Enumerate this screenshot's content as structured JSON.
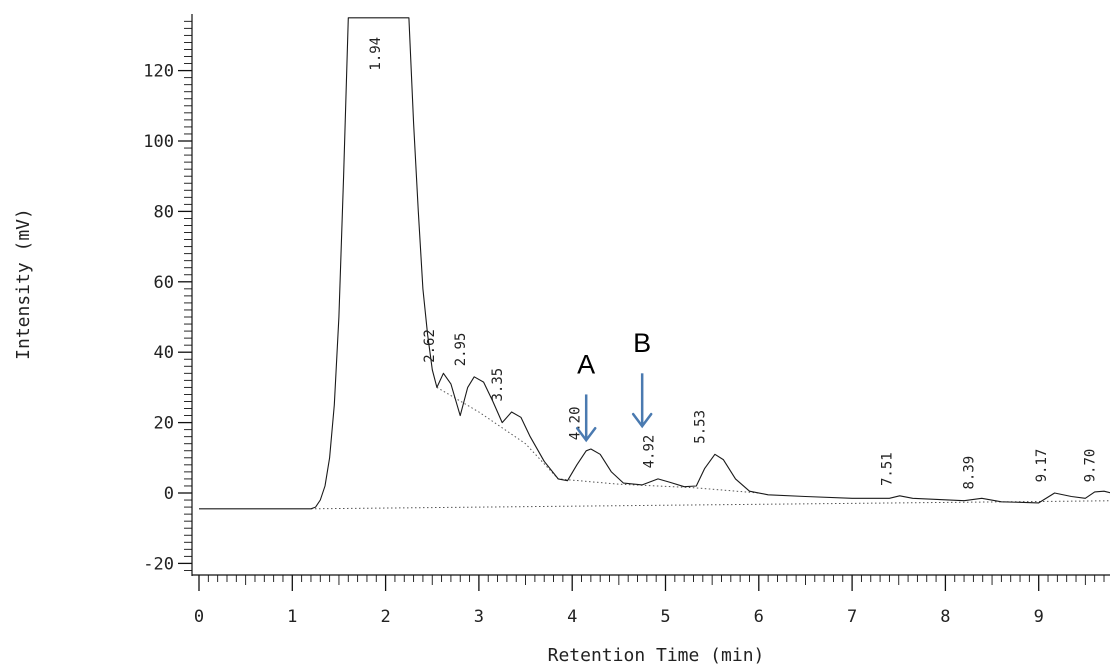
{
  "chart_data": {
    "type": "line",
    "title": "",
    "xlabel": "Retention Time (min)",
    "ylabel": "Intensity (mV)",
    "xlim": [
      0,
      9.85
    ],
    "ylim": [
      -24,
      135
    ],
    "x_ticks": [
      "0",
      "1",
      "2",
      "3",
      "4",
      "5",
      "6",
      "7",
      "8",
      "9"
    ],
    "y_ticks": [
      "-20",
      "0",
      "20",
      "40",
      "60",
      "80",
      "100",
      "120"
    ],
    "grid": false,
    "series": [
      {
        "points": [
          [
            0,
            -4.5
          ],
          [
            1.2,
            -4.5
          ],
          [
            1.25,
            -4.0
          ],
          [
            1.3,
            -2.0
          ],
          [
            1.35,
            2.0
          ],
          [
            1.4,
            10.0
          ],
          [
            1.45,
            25.0
          ],
          [
            1.5,
            50.0
          ],
          [
            1.55,
            90.0
          ],
          [
            1.6,
            135.0
          ],
          [
            2.25,
            135.0
          ],
          [
            2.3,
            105.0
          ],
          [
            2.35,
            80.0
          ],
          [
            2.4,
            58.0
          ],
          [
            2.45,
            45.0
          ],
          [
            2.5,
            35.0
          ],
          [
            2.55,
            30.0
          ],
          [
            2.62,
            34.0
          ],
          [
            2.7,
            31.0
          ],
          [
            2.8,
            22.0
          ],
          [
            2.88,
            30.0
          ],
          [
            2.95,
            33.0
          ],
          [
            3.05,
            31.5
          ],
          [
            3.15,
            26.0
          ],
          [
            3.25,
            20.0
          ],
          [
            3.35,
            23.0
          ],
          [
            3.45,
            21.5
          ],
          [
            3.55,
            16.0
          ],
          [
            3.7,
            9.0
          ],
          [
            3.85,
            4.0
          ],
          [
            3.95,
            3.5
          ],
          [
            4.05,
            8.0
          ],
          [
            4.15,
            12.0
          ],
          [
            4.2,
            12.5
          ],
          [
            4.3,
            11.0
          ],
          [
            4.42,
            6.0
          ],
          [
            4.55,
            2.8
          ],
          [
            4.75,
            2.3
          ],
          [
            4.92,
            4.0
          ],
          [
            5.05,
            3.0
          ],
          [
            5.2,
            1.8
          ],
          [
            5.33,
            2.0
          ],
          [
            5.42,
            7.0
          ],
          [
            5.53,
            11.0
          ],
          [
            5.62,
            9.5
          ],
          [
            5.75,
            4.0
          ],
          [
            5.9,
            0.5
          ],
          [
            6.1,
            -0.5
          ],
          [
            6.5,
            -1.0
          ],
          [
            7.0,
            -1.5
          ],
          [
            7.4,
            -1.5
          ],
          [
            7.51,
            -0.8
          ],
          [
            7.65,
            -1.5
          ],
          [
            8.2,
            -2.2
          ],
          [
            8.39,
            -1.5
          ],
          [
            8.6,
            -2.5
          ],
          [
            9.0,
            -2.8
          ],
          [
            9.17,
            0.0
          ],
          [
            9.35,
            -1.0
          ],
          [
            9.5,
            -1.5
          ],
          [
            9.6,
            0.3
          ],
          [
            9.7,
            0.5
          ],
          [
            9.85,
            -0.5
          ]
        ]
      }
    ],
    "baseline": [
      [
        1.2,
        -4.5
      ],
      [
        9.85,
        -2.2
      ]
    ],
    "envelope": [
      [
        2.55,
        30.0
      ],
      [
        3.0,
        23.0
      ],
      [
        3.5,
        14.0
      ],
      [
        3.85,
        4.0
      ],
      [
        4.5,
        2.5
      ],
      [
        5.3,
        1.5
      ],
      [
        6.0,
        0.0
      ]
    ],
    "peak_labels": [
      {
        "text": "1.94",
        "x": 1.94,
        "y": 120
      },
      {
        "text": "2.62",
        "x": 2.52,
        "y": 37
      },
      {
        "text": "2.95",
        "x": 2.85,
        "y": 36
      },
      {
        "text": "3.35",
        "x": 3.25,
        "y": 26
      },
      {
        "text": "4.20",
        "x": 4.08,
        "y": 15
      },
      {
        "text": "4.92",
        "x": 4.87,
        "y": 7
      },
      {
        "text": "5.53",
        "x": 5.42,
        "y": 14
      },
      {
        "text": "7.51",
        "x": 7.42,
        "y": 2
      },
      {
        "text": "8.39",
        "x": 8.3,
        "y": 1
      },
      {
        "text": "9.17",
        "x": 9.08,
        "y": 3
      },
      {
        "text": "9.70",
        "x": 9.6,
        "y": 3
      }
    ],
    "annotations": [
      {
        "text": "A",
        "arrow_x": 4.15,
        "arrow_top": 28,
        "arrow_bottom": 15,
        "text_y": 34
      },
      {
        "text": "B",
        "arrow_x": 4.75,
        "arrow_top": 34,
        "arrow_bottom": 19,
        "text_y": 40
      }
    ],
    "colors": {
      "trace": "#1a1a1a",
      "axis": "#111111",
      "dotted": "#555555",
      "arrow": "#4a7ab0"
    }
  }
}
